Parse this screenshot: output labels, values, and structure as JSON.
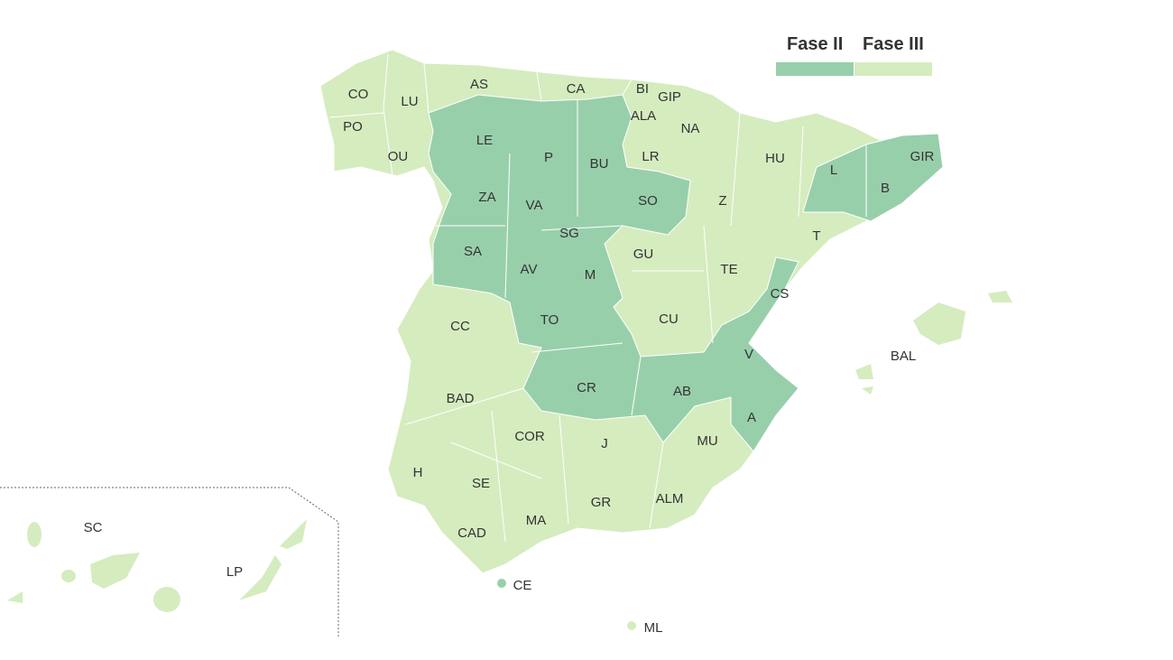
{
  "legend": {
    "items": [
      {
        "label": "Fase II",
        "color": "#98cfab"
      },
      {
        "label": "Fase III",
        "color": "#d5ecbf"
      }
    ]
  },
  "colors": {
    "fase_ii": "#98cfab",
    "fase_iii": "#d5ecbf",
    "border": "#ffffff",
    "label": "#333333"
  },
  "provinces": [
    {
      "code": "CO",
      "phase": "III"
    },
    {
      "code": "LU",
      "phase": "III"
    },
    {
      "code": "AS",
      "phase": "III"
    },
    {
      "code": "CA",
      "phase": "III"
    },
    {
      "code": "BI",
      "phase": "III"
    },
    {
      "code": "GIP",
      "phase": "III"
    },
    {
      "code": "ALA",
      "phase": "III"
    },
    {
      "code": "NA",
      "phase": "III"
    },
    {
      "code": "PO",
      "phase": "III"
    },
    {
      "code": "OU",
      "phase": "III"
    },
    {
      "code": "LE",
      "phase": "II"
    },
    {
      "code": "P",
      "phase": "II"
    },
    {
      "code": "BU",
      "phase": "II"
    },
    {
      "code": "LR",
      "phase": "III"
    },
    {
      "code": "HU",
      "phase": "III"
    },
    {
      "code": "L",
      "phase": "II"
    },
    {
      "code": "GIR",
      "phase": "II"
    },
    {
      "code": "B",
      "phase": "II"
    },
    {
      "code": "ZA",
      "phase": "II"
    },
    {
      "code": "VA",
      "phase": "II"
    },
    {
      "code": "SO",
      "phase": "II"
    },
    {
      "code": "Z",
      "phase": "III"
    },
    {
      "code": "SG",
      "phase": "II"
    },
    {
      "code": "T",
      "phase": "III"
    },
    {
      "code": "SA",
      "phase": "II"
    },
    {
      "code": "GU",
      "phase": "III"
    },
    {
      "code": "AV",
      "phase": "II"
    },
    {
      "code": "M",
      "phase": "II"
    },
    {
      "code": "TE",
      "phase": "III"
    },
    {
      "code": "CS",
      "phase": "II"
    },
    {
      "code": "CC",
      "phase": "III"
    },
    {
      "code": "TO",
      "phase": "II"
    },
    {
      "code": "CU",
      "phase": "III"
    },
    {
      "code": "BAL",
      "phase": "III"
    },
    {
      "code": "V",
      "phase": "II"
    },
    {
      "code": "BAD",
      "phase": "III"
    },
    {
      "code": "CR",
      "phase": "II"
    },
    {
      "code": "AB",
      "phase": "II"
    },
    {
      "code": "A",
      "phase": "II"
    },
    {
      "code": "COR",
      "phase": "III"
    },
    {
      "code": "J",
      "phase": "III"
    },
    {
      "code": "MU",
      "phase": "III"
    },
    {
      "code": "H",
      "phase": "III"
    },
    {
      "code": "SE",
      "phase": "III"
    },
    {
      "code": "GR",
      "phase": "III"
    },
    {
      "code": "ALM",
      "phase": "III"
    },
    {
      "code": "SC",
      "phase": "III"
    },
    {
      "code": "MA",
      "phase": "III"
    },
    {
      "code": "CAD",
      "phase": "III"
    },
    {
      "code": "LP",
      "phase": "III"
    },
    {
      "code": "CE",
      "phase": "II"
    },
    {
      "code": "ML",
      "phase": "III"
    }
  ]
}
